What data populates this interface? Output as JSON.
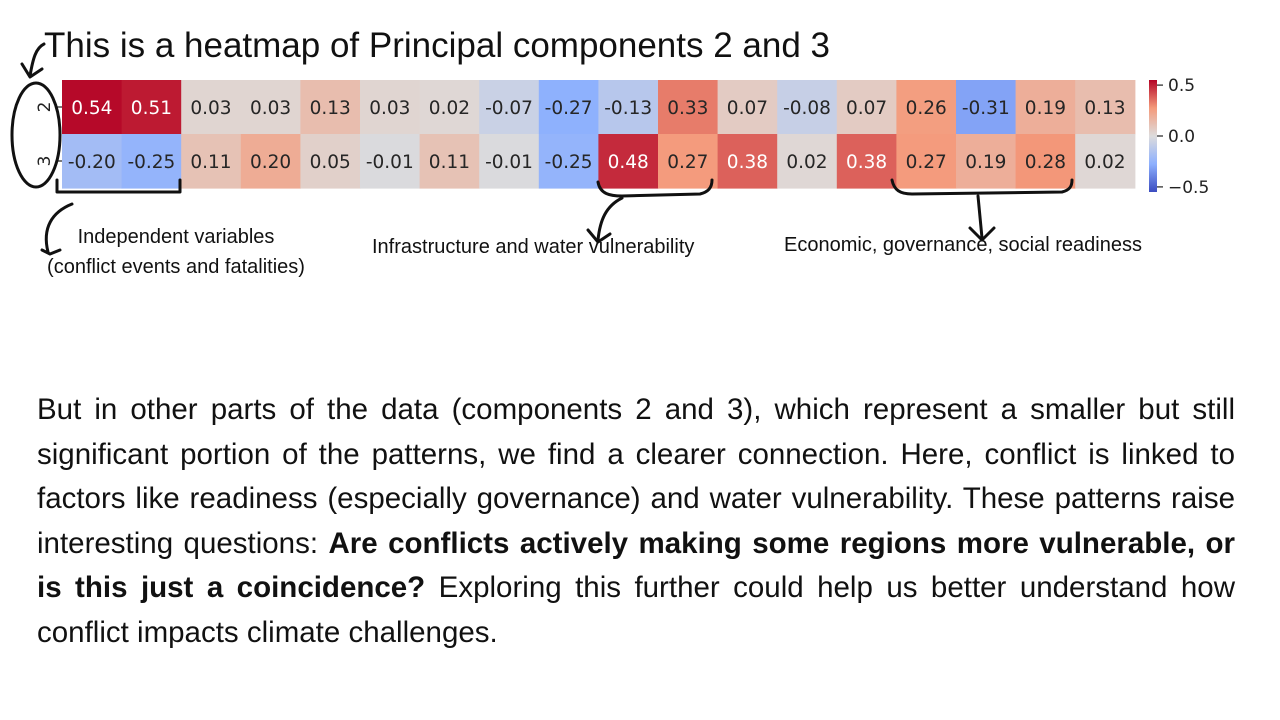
{
  "title": "This is a heatmap of Principal components 2 and 3",
  "chart_data": {
    "type": "heatmap",
    "rows": [
      "2",
      "3"
    ],
    "values": [
      [
        0.54,
        0.51,
        0.03,
        0.03,
        0.13,
        0.03,
        0.02,
        -0.07,
        -0.27,
        -0.13,
        0.33,
        0.07,
        -0.08,
        0.07,
        0.26,
        -0.31,
        0.19,
        0.13
      ],
      [
        -0.2,
        -0.25,
        0.11,
        0.2,
        0.05,
        -0.01,
        0.11,
        -0.01,
        -0.25,
        0.48,
        0.27,
        0.38,
        0.02,
        0.38,
        0.27,
        0.19,
        0.28,
        0.02
      ]
    ],
    "labels": [
      [
        "0.54",
        "0.51",
        "0.03",
        "0.03",
        "0.13",
        "0.03",
        "0.02",
        "-0.07",
        "-0.27",
        "-0.13",
        "0.33",
        "0.07",
        "-0.08",
        "0.07",
        "0.26",
        "-0.31",
        "0.19",
        "0.13"
      ],
      [
        "-0.20",
        "-0.25",
        "0.11",
        "0.20",
        "0.05",
        "-0.01",
        "0.11",
        "-0.01",
        "-0.25",
        "0.48",
        "0.27",
        "0.38",
        "0.02",
        "0.38",
        "0.27",
        "0.19",
        "0.28",
        "0.02"
      ]
    ],
    "colormap": "coolwarm",
    "vmin": -0.55,
    "vmax": 0.55,
    "colorbar_ticks": [
      {
        "value": 0.5,
        "label": "0.5"
      },
      {
        "value": 0.0,
        "label": "0.0"
      },
      {
        "value": -0.5,
        "label": "−0.5"
      }
    ]
  },
  "annotations": {
    "independent_line1": "Independent variables",
    "independent_line2": "(conflict events and fatalities)",
    "infrastructure": "Infrastructure and water vulnerability",
    "economic": "Economic, governance, social readiness"
  },
  "paragraph": {
    "part1": "But in other parts of the data (components 2 and 3), which represent a smaller but still significant portion of the patterns, we find a clearer connection. Here, conflict is linked to factors like readiness (especially governance) and water vulnerability. These patterns raise interesting questions: ",
    "bold": "Are conflicts actively making some regions more vulnerable, or is this just a coincidence?",
    "part2": " Exploring this further could help us better understand how conflict impacts climate challenges."
  }
}
